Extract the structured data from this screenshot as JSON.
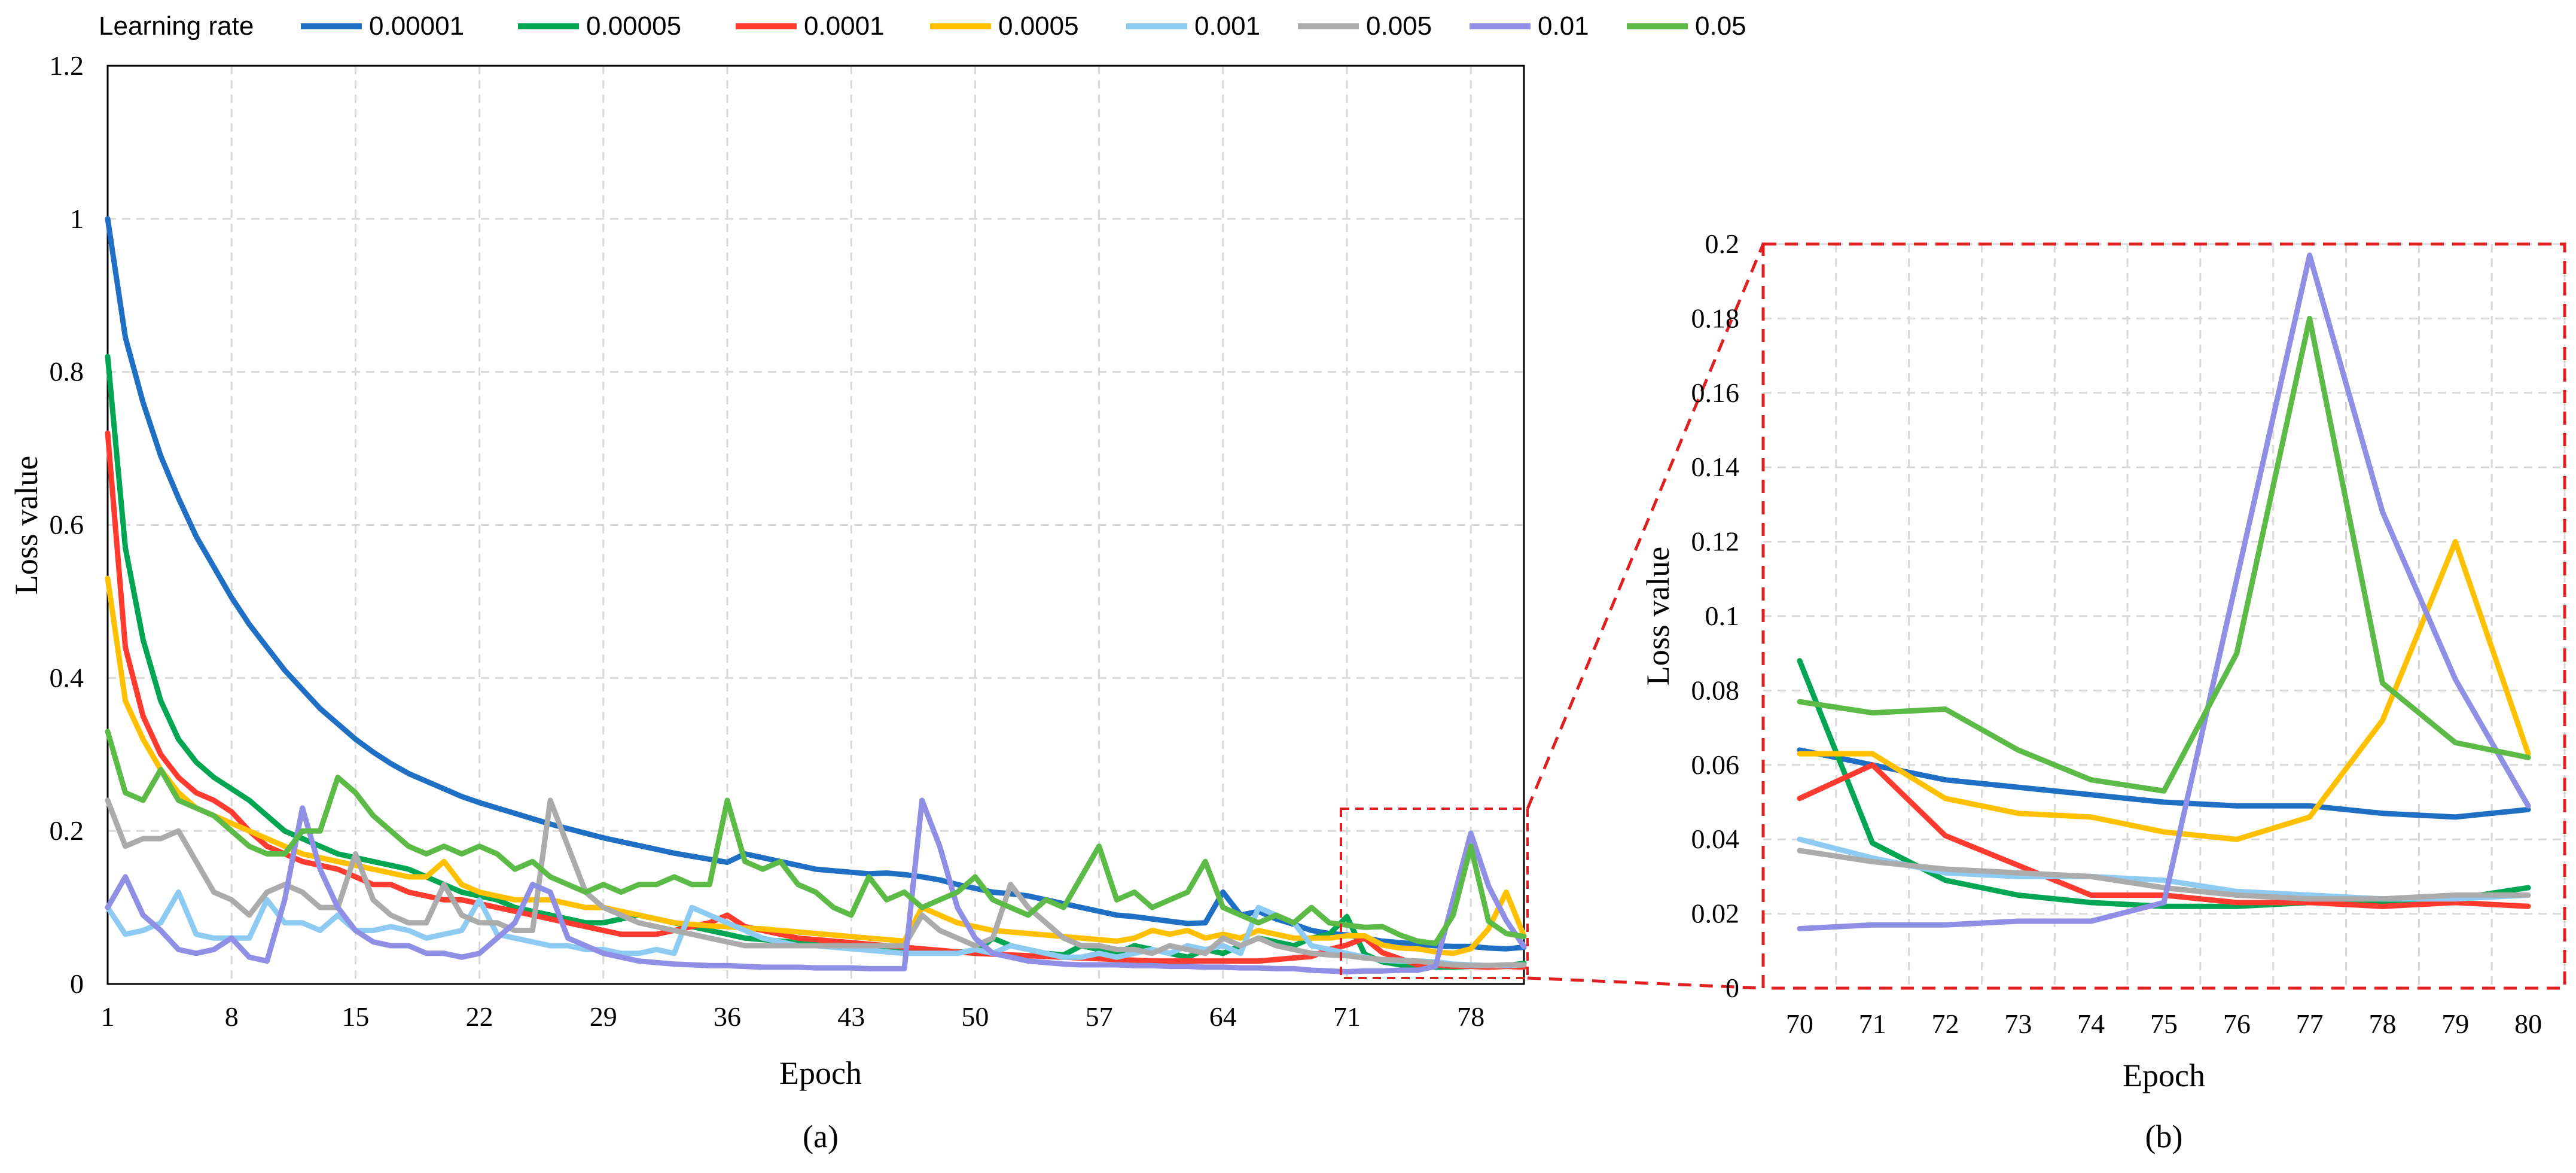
{
  "legend": {
    "title": "Learning rate"
  },
  "colors": {
    "0.00001": "#1f6fc5",
    "0.00005": "#00a651",
    "0.0001": "#ff3b2f",
    "0.0005": "#ffc000",
    "0.001": "#8ecbf2",
    "0.005": "#ababab",
    "0.01": "#8f8fe6",
    "0.05": "#5cba47",
    "zoom_box": "#e02020",
    "grid": "#d9d9d9"
  },
  "captions": {
    "a": "(a)",
    "b": "(b)"
  },
  "chart_data": [
    {
      "id": "a",
      "type": "line",
      "title": "",
      "xlabel": "Epoch",
      "ylabel": "Loss value",
      "xlim": [
        1,
        81
      ],
      "ylim": [
        0,
        1.2
      ],
      "xticks": [
        1,
        8,
        15,
        22,
        29,
        36,
        43,
        50,
        57,
        64,
        71,
        78
      ],
      "yticks": [
        0,
        0.2,
        0.4,
        0.6,
        0.8,
        1,
        1.2
      ],
      "ytick_labels": [
        "0",
        "0.2",
        "0.4",
        "0.6",
        "0.8",
        "1",
        "1.2"
      ],
      "grid": true,
      "legend_position": "top",
      "series": [
        {
          "name": "0.00001",
          "values": [
            1.0,
            0.845,
            0.76,
            0.69,
            0.635,
            0.585,
            0.545,
            0.505,
            0.47,
            0.44,
            0.41,
            0.385,
            0.36,
            0.34,
            0.32,
            0.303,
            0.288,
            0.275,
            0.265,
            0.255,
            0.245,
            0.237,
            0.23,
            0.223,
            0.216,
            0.209,
            0.203,
            0.197,
            0.191,
            0.186,
            0.181,
            0.176,
            0.171,
            0.167,
            0.163,
            0.159,
            0.17,
            0.165,
            0.16,
            0.155,
            0.15,
            0.148,
            0.146,
            0.144,
            0.145,
            0.143,
            0.14,
            0.136,
            0.13,
            0.125,
            0.12,
            0.118,
            0.115,
            0.11,
            0.105,
            0.1,
            0.095,
            0.09,
            0.088,
            0.085,
            0.082,
            0.079,
            0.08,
            0.12,
            0.09,
            0.095,
            0.085,
            0.078,
            0.07,
            0.066,
            0.064,
            0.06,
            0.056,
            0.054,
            0.052,
            0.05,
            0.049,
            0.049,
            0.047,
            0.046,
            0.048
          ]
        },
        {
          "name": "0.00005",
          "values": [
            0.82,
            0.57,
            0.45,
            0.37,
            0.32,
            0.29,
            0.27,
            0.255,
            0.24,
            0.22,
            0.2,
            0.19,
            0.18,
            0.17,
            0.165,
            0.16,
            0.155,
            0.15,
            0.14,
            0.13,
            0.12,
            0.115,
            0.11,
            0.1,
            0.095,
            0.09,
            0.085,
            0.08,
            0.08,
            0.085,
            0.09,
            0.085,
            0.08,
            0.075,
            0.07,
            0.065,
            0.06,
            0.058,
            0.056,
            0.054,
            0.052,
            0.05,
            0.048,
            0.047,
            0.046,
            0.045,
            0.044,
            0.043,
            0.042,
            0.041,
            0.06,
            0.05,
            0.045,
            0.04,
            0.038,
            0.05,
            0.045,
            0.04,
            0.05,
            0.045,
            0.04,
            0.035,
            0.045,
            0.04,
            0.05,
            0.06,
            0.055,
            0.05,
            0.06,
            0.065,
            0.088,
            0.039,
            0.029,
            0.025,
            0.023,
            0.022,
            0.022,
            0.023,
            0.023,
            0.024,
            0.027
          ]
        },
        {
          "name": "0.0001",
          "values": [
            0.72,
            0.44,
            0.35,
            0.3,
            0.27,
            0.25,
            0.24,
            0.225,
            0.2,
            0.18,
            0.17,
            0.16,
            0.155,
            0.15,
            0.14,
            0.13,
            0.13,
            0.12,
            0.115,
            0.11,
            0.11,
            0.105,
            0.1,
            0.095,
            0.09,
            0.085,
            0.08,
            0.075,
            0.07,
            0.065,
            0.065,
            0.065,
            0.07,
            0.075,
            0.08,
            0.09,
            0.075,
            0.07,
            0.065,
            0.06,
            0.058,
            0.056,
            0.054,
            0.052,
            0.05,
            0.048,
            0.046,
            0.044,
            0.042,
            0.04,
            0.039,
            0.038,
            0.037,
            0.036,
            0.035,
            0.034,
            0.033,
            0.032,
            0.031,
            0.03,
            0.03,
            0.03,
            0.03,
            0.03,
            0.03,
            0.03,
            0.032,
            0.034,
            0.036,
            0.045,
            0.051,
            0.06,
            0.041,
            0.033,
            0.025,
            0.025,
            0.023,
            0.023,
            0.022,
            0.023,
            0.022
          ]
        },
        {
          "name": "0.0005",
          "values": [
            0.53,
            0.37,
            0.32,
            0.28,
            0.25,
            0.23,
            0.22,
            0.21,
            0.2,
            0.19,
            0.18,
            0.17,
            0.165,
            0.16,
            0.155,
            0.15,
            0.145,
            0.14,
            0.14,
            0.16,
            0.13,
            0.12,
            0.115,
            0.11,
            0.11,
            0.11,
            0.105,
            0.1,
            0.1,
            0.095,
            0.09,
            0.085,
            0.08,
            0.078,
            0.076,
            0.075,
            0.073,
            0.072,
            0.07,
            0.068,
            0.066,
            0.064,
            0.062,
            0.06,
            0.058,
            0.056,
            0.1,
            0.09,
            0.08,
            0.075,
            0.07,
            0.068,
            0.066,
            0.064,
            0.062,
            0.06,
            0.058,
            0.056,
            0.06,
            0.07,
            0.065,
            0.07,
            0.06,
            0.065,
            0.06,
            0.07,
            0.065,
            0.06,
            0.06,
            0.06,
            0.063,
            0.063,
            0.051,
            0.047,
            0.046,
            0.042,
            0.04,
            0.046,
            0.072,
            0.12,
            0.063
          ]
        },
        {
          "name": "0.001",
          "values": [
            0.1,
            0.065,
            0.07,
            0.08,
            0.12,
            0.065,
            0.06,
            0.06,
            0.06,
            0.11,
            0.08,
            0.08,
            0.07,
            0.09,
            0.07,
            0.07,
            0.075,
            0.07,
            0.06,
            0.065,
            0.07,
            0.11,
            0.065,
            0.06,
            0.055,
            0.05,
            0.05,
            0.045,
            0.045,
            0.04,
            0.04,
            0.045,
            0.04,
            0.1,
            0.09,
            0.08,
            0.07,
            0.06,
            0.055,
            0.05,
            0.05,
            0.048,
            0.046,
            0.044,
            0.042,
            0.04,
            0.04,
            0.04,
            0.04,
            0.045,
            0.04,
            0.05,
            0.045,
            0.04,
            0.035,
            0.035,
            0.04,
            0.035,
            0.04,
            0.045,
            0.04,
            0.05,
            0.045,
            0.05,
            0.04,
            0.1,
            0.09,
            0.08,
            0.05,
            0.045,
            0.04,
            0.035,
            0.031,
            0.03,
            0.03,
            0.029,
            0.026,
            0.025,
            0.024,
            0.024,
            0.025
          ]
        },
        {
          "name": "0.005",
          "values": [
            0.24,
            0.18,
            0.19,
            0.19,
            0.2,
            0.16,
            0.12,
            0.11,
            0.09,
            0.12,
            0.13,
            0.12,
            0.1,
            0.1,
            0.17,
            0.11,
            0.09,
            0.08,
            0.08,
            0.13,
            0.09,
            0.08,
            0.08,
            0.07,
            0.07,
            0.24,
            0.18,
            0.12,
            0.1,
            0.09,
            0.08,
            0.075,
            0.07,
            0.065,
            0.06,
            0.055,
            0.05,
            0.05,
            0.05,
            0.05,
            0.05,
            0.05,
            0.05,
            0.05,
            0.05,
            0.05,
            0.09,
            0.07,
            0.06,
            0.05,
            0.06,
            0.13,
            0.1,
            0.08,
            0.06,
            0.05,
            0.05,
            0.045,
            0.045,
            0.04,
            0.05,
            0.045,
            0.04,
            0.06,
            0.05,
            0.06,
            0.05,
            0.045,
            0.04,
            0.038,
            0.037,
            0.034,
            0.032,
            0.031,
            0.03,
            0.027,
            0.025,
            0.024,
            0.024,
            0.025,
            0.025
          ]
        },
        {
          "name": "0.01",
          "values": [
            0.1,
            0.14,
            0.09,
            0.07,
            0.045,
            0.04,
            0.045,
            0.06,
            0.035,
            0.03,
            0.11,
            0.23,
            0.15,
            0.1,
            0.07,
            0.055,
            0.05,
            0.05,
            0.04,
            0.04,
            0.035,
            0.04,
            0.06,
            0.08,
            0.13,
            0.12,
            0.06,
            0.05,
            0.04,
            0.035,
            0.03,
            0.028,
            0.026,
            0.025,
            0.024,
            0.024,
            0.023,
            0.022,
            0.022,
            0.022,
            0.021,
            0.021,
            0.021,
            0.02,
            0.02,
            0.02,
            0.24,
            0.18,
            0.1,
            0.06,
            0.04,
            0.035,
            0.03,
            0.028,
            0.026,
            0.025,
            0.025,
            0.025,
            0.024,
            0.024,
            0.023,
            0.023,
            0.022,
            0.022,
            0.021,
            0.021,
            0.02,
            0.02,
            0.018,
            0.017,
            0.016,
            0.017,
            0.017,
            0.018,
            0.018,
            0.023,
            0.11,
            0.197,
            0.128,
            0.083,
            0.049
          ]
        },
        {
          "name": "0.05",
          "values": [
            0.33,
            0.25,
            0.24,
            0.28,
            0.24,
            0.23,
            0.22,
            0.2,
            0.18,
            0.17,
            0.17,
            0.2,
            0.2,
            0.27,
            0.25,
            0.22,
            0.2,
            0.18,
            0.17,
            0.18,
            0.17,
            0.18,
            0.17,
            0.15,
            0.16,
            0.14,
            0.13,
            0.12,
            0.13,
            0.12,
            0.13,
            0.13,
            0.14,
            0.13,
            0.13,
            0.24,
            0.16,
            0.15,
            0.16,
            0.13,
            0.12,
            0.1,
            0.09,
            0.14,
            0.11,
            0.12,
            0.1,
            0.11,
            0.12,
            0.14,
            0.11,
            0.1,
            0.09,
            0.11,
            0.1,
            0.14,
            0.18,
            0.11,
            0.12,
            0.1,
            0.11,
            0.12,
            0.16,
            0.1,
            0.09,
            0.08,
            0.09,
            0.08,
            0.1,
            0.08,
            0.077,
            0.074,
            0.075,
            0.064,
            0.056,
            0.053,
            0.09,
            0.18,
            0.082,
            0.066,
            0.062
          ]
        }
      ]
    },
    {
      "id": "b",
      "type": "line",
      "title": "",
      "xlabel": "Epoch",
      "ylabel": "Loss value",
      "x": [
        70,
        71,
        72,
        73,
        74,
        75,
        76,
        77,
        78,
        79,
        80
      ],
      "xlim": [
        69.5,
        80.5
      ],
      "ylim": [
        0,
        0.2
      ],
      "yticks": [
        0,
        0.02,
        0.04,
        0.06,
        0.08,
        0.1,
        0.12,
        0.14,
        0.16,
        0.18,
        0.2
      ],
      "ytick_labels": [
        "0",
        "0.02",
        "0.04",
        "0.06",
        "0.08",
        "0.1",
        "0.12",
        "0.14",
        "0.16",
        "0.18",
        "0.2"
      ],
      "grid": true,
      "series": [
        {
          "name": "0.00001",
          "values": [
            0.064,
            0.06,
            0.056,
            0.054,
            0.052,
            0.05,
            0.049,
            0.049,
            0.047,
            0.046,
            0.048
          ]
        },
        {
          "name": "0.00005",
          "values": [
            0.088,
            0.039,
            0.029,
            0.025,
            0.023,
            0.022,
            0.022,
            0.023,
            0.023,
            0.024,
            0.027
          ]
        },
        {
          "name": "0.0001",
          "values": [
            0.051,
            0.06,
            0.041,
            0.033,
            0.025,
            0.025,
            0.023,
            0.023,
            0.022,
            0.023,
            0.022
          ]
        },
        {
          "name": "0.0005",
          "values": [
            0.063,
            0.063,
            0.051,
            0.047,
            0.046,
            0.042,
            0.04,
            0.046,
            0.072,
            0.12,
            0.063
          ]
        },
        {
          "name": "0.001",
          "values": [
            0.04,
            0.035,
            0.031,
            0.03,
            0.03,
            0.029,
            0.026,
            0.025,
            0.024,
            0.024,
            0.025
          ]
        },
        {
          "name": "0.005",
          "values": [
            0.037,
            0.034,
            0.032,
            0.031,
            0.03,
            0.027,
            0.025,
            0.024,
            0.024,
            0.025,
            0.025
          ]
        },
        {
          "name": "0.01",
          "values": [
            0.016,
            0.017,
            0.017,
            0.018,
            0.018,
            0.023,
            0.11,
            0.197,
            0.128,
            0.083,
            0.049
          ]
        },
        {
          "name": "0.05",
          "values": [
            0.077,
            0.074,
            0.075,
            0.064,
            0.056,
            0.053,
            0.09,
            0.18,
            0.082,
            0.066,
            0.062
          ]
        }
      ]
    }
  ]
}
